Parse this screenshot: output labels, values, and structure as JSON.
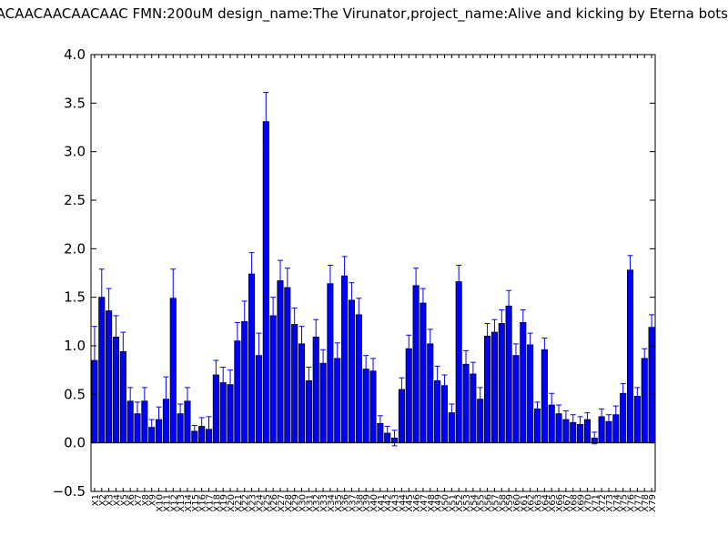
{
  "title": "AACAACAACAACAAC  FMN:200uM  design_name:The Virunator,project_name:Alive and kicking by Eterna bots",
  "chart_data": {
    "type": "bar",
    "title": "AACAACAACAACAAC  FMN:200uM  design_name:The Virunator,project_name:Alive and kicking by Eterna bots",
    "xlabel": "",
    "ylabel": "",
    "ylim": [
      -0.5,
      4.0
    ],
    "yticks": [
      "−0.5",
      "0.0",
      "0.5",
      "1.0",
      "1.5",
      "2.0",
      "2.5",
      "3.0",
      "3.5",
      "4.0"
    ],
    "grid": false,
    "bar_color": "#0000ff",
    "error_color": "#0000ff",
    "categories": [
      "X1",
      "X2",
      "X3",
      "X4",
      "X5",
      "X6",
      "X7",
      "X8",
      "X9",
      "X10",
      "X11",
      "X12",
      "X13",
      "X14",
      "X15",
      "X16",
      "X17",
      "X18",
      "X19",
      "X20",
      "X21",
      "X22",
      "X23",
      "X24",
      "X25",
      "X26",
      "X27",
      "X28",
      "X29",
      "X30",
      "X31",
      "X32",
      "X33",
      "X34",
      "X35",
      "X36",
      "X37",
      "X38",
      "X39",
      "X40",
      "X41",
      "X42",
      "X43",
      "X44",
      "X45",
      "X46",
      "X47",
      "X48",
      "X49",
      "X50",
      "X51",
      "X52",
      "X53",
      "X54",
      "X55",
      "X56",
      "X57",
      "X58",
      "X59",
      "X60",
      "X61",
      "X62",
      "X63",
      "X64",
      "X65",
      "X66",
      "X67",
      "X68",
      "X69",
      "X70",
      "X71",
      "X72",
      "X73",
      "X74",
      "X75",
      "X76",
      "X77",
      "X78",
      "X79"
    ],
    "values": [
      0.85,
      1.5,
      1.36,
      1.09,
      0.94,
      0.43,
      0.3,
      0.43,
      0.16,
      0.24,
      0.45,
      1.49,
      0.3,
      0.43,
      0.12,
      0.17,
      0.14,
      0.7,
      0.62,
      0.6,
      1.05,
      1.25,
      1.74,
      0.9,
      3.31,
      1.31,
      1.67,
      1.6,
      1.22,
      1.02,
      0.64,
      1.09,
      0.82,
      1.64,
      0.87,
      1.72,
      1.47,
      1.32,
      0.76,
      0.74,
      0.2,
      0.1,
      0.05,
      0.55,
      0.97,
      1.62,
      1.44,
      1.02,
      0.64,
      0.59,
      0.31,
      1.66,
      0.81,
      0.71,
      0.45,
      1.1,
      1.14,
      1.23,
      1.41,
      0.9,
      1.24,
      1.01,
      0.35,
      0.96,
      0.39,
      0.3,
      0.24,
      0.21,
      0.19,
      0.24,
      0.05,
      0.27,
      0.22,
      0.29,
      0.51,
      1.78,
      0.48,
      0.87,
      1.19
    ],
    "errors": [
      0.35,
      0.29,
      0.23,
      0.22,
      0.2,
      0.14,
      0.12,
      0.14,
      0.08,
      0.13,
      0.23,
      0.3,
      0.1,
      0.14,
      0.06,
      0.09,
      0.13,
      0.15,
      0.16,
      0.15,
      0.19,
      0.21,
      0.22,
      0.23,
      0.3,
      0.19,
      0.21,
      0.2,
      0.17,
      0.18,
      0.14,
      0.18,
      0.14,
      0.19,
      0.16,
      0.2,
      0.18,
      0.17,
      0.14,
      0.13,
      0.08,
      0.07,
      0.08,
      0.12,
      0.14,
      0.18,
      0.15,
      0.15,
      0.15,
      0.11,
      0.09,
      0.17,
      0.14,
      0.12,
      0.12,
      0.13,
      0.13,
      0.14,
      0.16,
      0.12,
      0.13,
      0.12,
      0.07,
      0.12,
      0.12,
      0.09,
      0.09,
      0.08,
      0.08,
      0.07,
      0.06,
      0.08,
      0.07,
      0.09,
      0.1,
      0.15,
      0.09,
      0.1,
      0.13
    ]
  }
}
